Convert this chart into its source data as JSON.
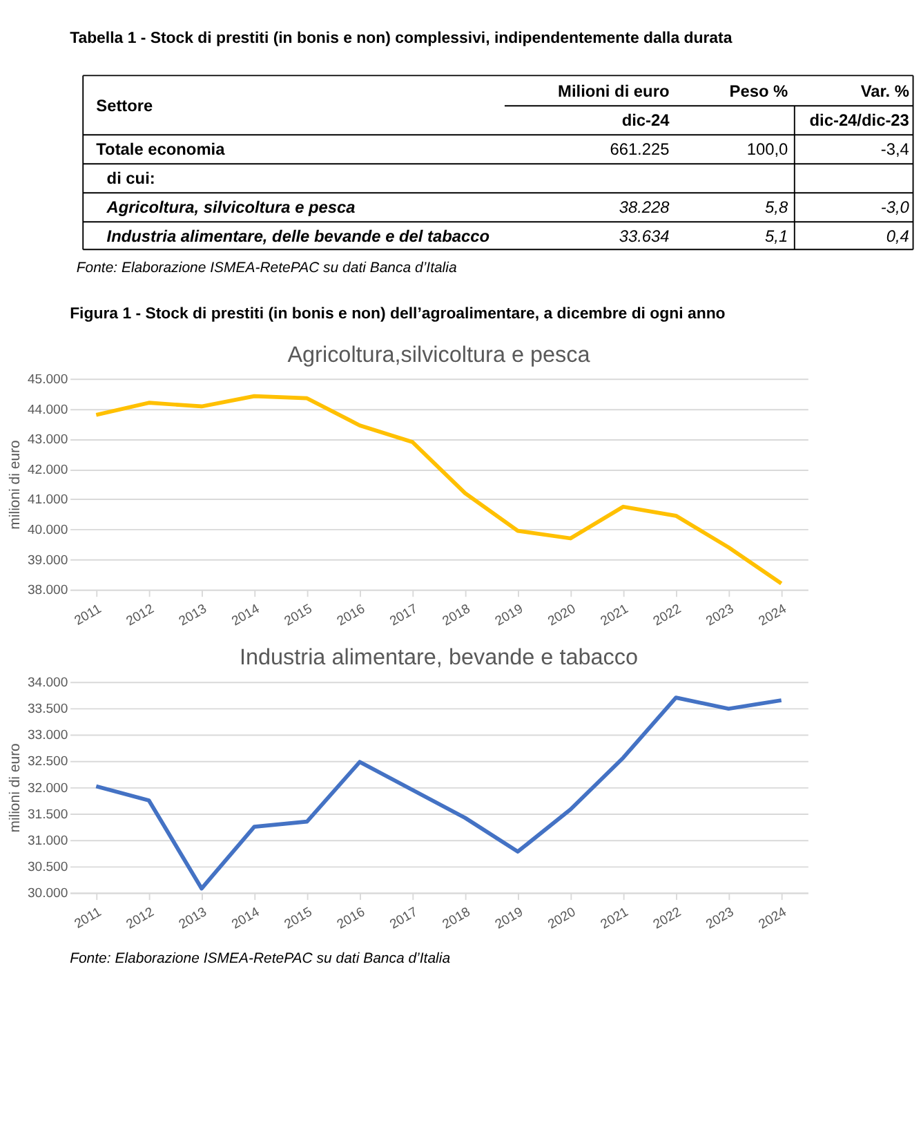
{
  "chart_data": [
    {
      "type": "other",
      "title": "Tabella 1 - Stock di prestiti (in bonis e non) complessivi, indipendentemente dalla durata",
      "annotations": [
        "Settore",
        "Milioni di euro",
        "Peso %",
        "Var. %",
        "dic-24",
        "dic-24/dic-23",
        "Totale economia",
        "661.225",
        "100,0",
        "-3,4",
        "di cui:",
        "Agricoltura, silvicoltura e pesca",
        "38.228",
        "5,8",
        "-3,0",
        "Industria alimentare, delle bevande e del tabacco",
        "33.634",
        "5,1",
        "0,4",
        "Fonte: Elaborazione ISMEA-RetePAC su dati Banca d’Italia"
      ]
    },
    {
      "type": "line",
      "title": "Agricoltura,silvicoltura e pesca",
      "ylabel": "milioni di euro",
      "annotations": [
        "Figura 1 - Stock di prestiti (in bonis e non) dell’agroalimentare, a dicembre di ogni anno"
      ],
      "categories": [
        "2011",
        "2012",
        "2013",
        "2014",
        "2015",
        "2016",
        "2017",
        "2018",
        "2019",
        "2020",
        "2021",
        "2022",
        "2023",
        "2024"
      ],
      "series": [
        {
          "color": "#ffc000",
          "values": [
            43800,
            44200,
            44080,
            44420,
            44350,
            43450,
            42900,
            41200,
            39950,
            39700,
            40750,
            40450,
            39400,
            38200
          ]
        }
      ],
      "ylim": [
        38000,
        45000
      ],
      "yticks": [
        {
          "value": 38000,
          "label": "38.000"
        },
        {
          "value": 39000,
          "label": "39.000"
        },
        {
          "value": 40000,
          "label": "40.000"
        },
        {
          "value": 41000,
          "label": "41.000"
        },
        {
          "value": 42000,
          "label": "42.000"
        },
        {
          "value": 43000,
          "label": "43.000"
        },
        {
          "value": 44000,
          "label": "44.000"
        },
        {
          "value": 45000,
          "label": "45.000"
        }
      ],
      "grid": "y",
      "legend": false,
      "marker": "none",
      "line_style": "solid"
    },
    {
      "type": "line",
      "title": "Industria alimentare, bevande e tabacco",
      "ylabel": "milioni di euro",
      "annotations": [
        "Fonte: Elaborazione ISMEA-RetePAC su dati Banca d’Italia"
      ],
      "categories": [
        "2011",
        "2012",
        "2013",
        "2014",
        "2015",
        "2016",
        "2017",
        "2018",
        "2019",
        "2020",
        "2021",
        "2022",
        "2023",
        "2024"
      ],
      "series": [
        {
          "color": "#4472c4",
          "values": [
            32020,
            31750,
            30080,
            31250,
            31350,
            32480,
            31950,
            31420,
            30780,
            31580,
            32560,
            33700,
            33490,
            33650
          ]
        }
      ],
      "ylim": [
        30000,
        34000
      ],
      "yticks": [
        {
          "value": 30000,
          "label": "30.000"
        },
        {
          "value": 30500,
          "label": "30.500"
        },
        {
          "value": 31000,
          "label": "31.000"
        },
        {
          "value": 31500,
          "label": "31.500"
        },
        {
          "value": 32000,
          "label": "32.000"
        },
        {
          "value": 32500,
          "label": "32.500"
        },
        {
          "value": 33000,
          "label": "33.000"
        },
        {
          "value": 33500,
          "label": "33.500"
        },
        {
          "value": 34000,
          "label": "34.000"
        }
      ],
      "grid": "y",
      "legend": false,
      "marker": "none",
      "line_style": "solid"
    }
  ]
}
